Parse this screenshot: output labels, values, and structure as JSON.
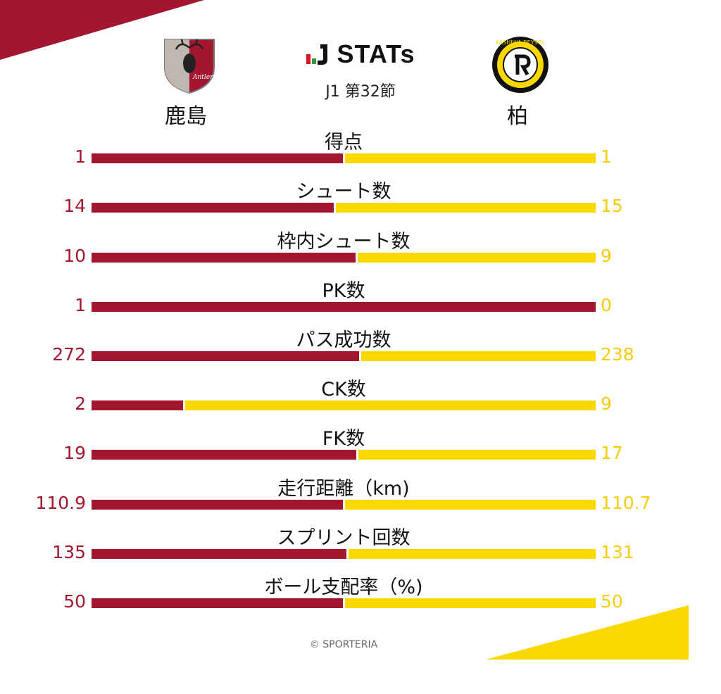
{
  "header": {
    "brand_label": "STATs",
    "round_label": "J1 第32節"
  },
  "teams": {
    "home": {
      "name": "鹿島",
      "color": "#a4162f",
      "crest_text": "Antlers"
    },
    "away": {
      "name": "柏",
      "color": "#fbd900",
      "crest_text": "KASHIWA REYSOL"
    }
  },
  "stats": [
    {
      "label": "得点",
      "home": "1",
      "away": "1",
      "home_share": 0.5
    },
    {
      "label": "シュート数",
      "home": "14",
      "away": "15",
      "home_share": 0.483
    },
    {
      "label": "枠内シュート数",
      "home": "10",
      "away": "9",
      "home_share": 0.526
    },
    {
      "label": "PK数",
      "home": "1",
      "away": "0",
      "home_share": 1.0
    },
    {
      "label": "パス成功数",
      "home": "272",
      "away": "238",
      "home_share": 0.533
    },
    {
      "label": "CK数",
      "home": "2",
      "away": "9",
      "home_share": 0.182
    },
    {
      "label": "FK数",
      "home": "19",
      "away": "17",
      "home_share": 0.528
    },
    {
      "label": "走行距離（km)",
      "home": "110.9",
      "away": "110.7",
      "home_share": 0.501
    },
    {
      "label": "スプリント回数",
      "home": "135",
      "away": "131",
      "home_share": 0.508
    },
    {
      "label": "ボール支配率（%)",
      "home": "50",
      "away": "50",
      "home_share": 0.5
    }
  ],
  "footer": {
    "credit": "© SPORTERIA"
  },
  "icons": {
    "brand": "j-league-logo-icon",
    "home_crest": "antlers-crest-icon",
    "away_crest": "reysol-crest-icon"
  }
}
